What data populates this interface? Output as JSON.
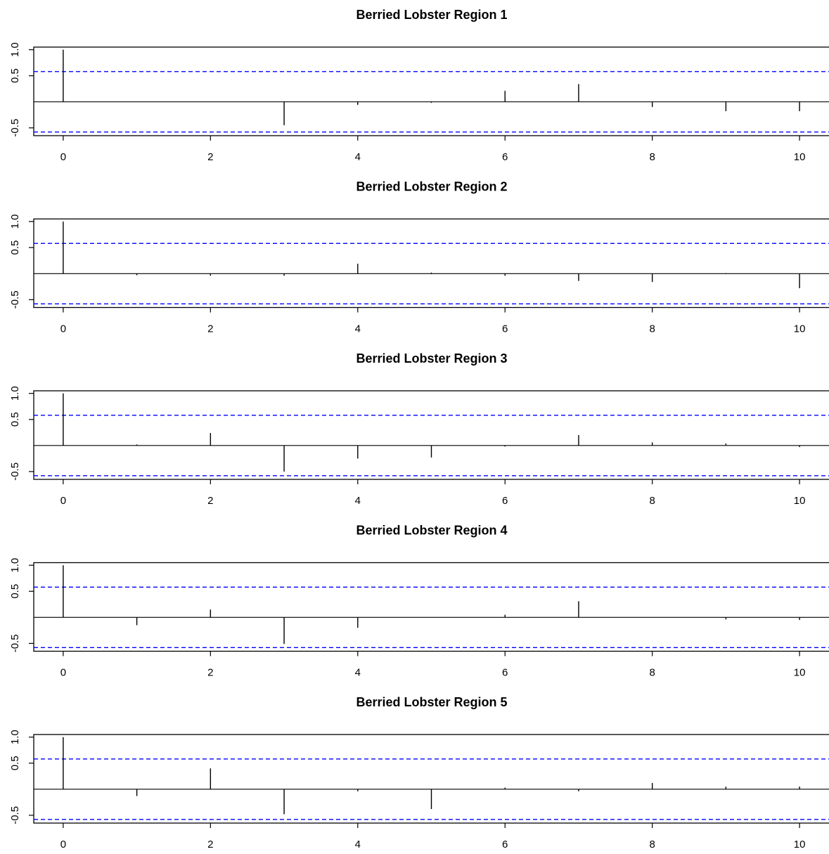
{
  "chart_data": [
    {
      "type": "bar",
      "title": "Berried Lobster Region 1",
      "x": [
        0,
        1,
        2,
        3,
        4,
        5,
        6,
        7,
        8,
        9,
        10
      ],
      "values": [
        1.0,
        0.0,
        0.0,
        -0.45,
        -0.06,
        -0.02,
        0.21,
        0.34,
        -0.1,
        -0.18,
        -0.18
      ],
      "xlim": [
        -0.4,
        10.4
      ],
      "ylim": [
        -0.65,
        1.05
      ],
      "xticks": [
        0,
        2,
        4,
        6,
        8,
        10
      ],
      "yticks": [
        -0.5,
        0.5,
        1.0
      ],
      "yticklabels": [
        "-0.5",
        "0.5",
        "1.0"
      ],
      "confidence_band": 0.58,
      "band_color": "#0000ff"
    },
    {
      "type": "bar",
      "title": "Berried Lobster Region 2",
      "x": [
        0,
        1,
        2,
        3,
        4,
        5,
        6,
        7,
        8,
        9,
        10
      ],
      "values": [
        1.0,
        -0.03,
        -0.04,
        -0.04,
        0.19,
        0.02,
        -0.04,
        -0.14,
        -0.16,
        0.01,
        -0.28
      ],
      "xlim": [
        -0.4,
        10.4
      ],
      "ylim": [
        -0.65,
        1.05
      ],
      "xticks": [
        0,
        2,
        4,
        6,
        8,
        10
      ],
      "yticks": [
        -0.5,
        0.5,
        1.0
      ],
      "yticklabels": [
        "-0.5",
        "0.5",
        "1.0"
      ],
      "confidence_band": 0.58,
      "band_color": "#0000ff"
    },
    {
      "type": "bar",
      "title": "Berried Lobster Region 3",
      "x": [
        0,
        1,
        2,
        3,
        4,
        5,
        6,
        7,
        8,
        9,
        10
      ],
      "values": [
        1.0,
        0.02,
        0.24,
        -0.5,
        -0.25,
        -0.23,
        -0.02,
        0.2,
        0.06,
        0.04,
        -0.03
      ],
      "xlim": [
        -0.4,
        10.4
      ],
      "ylim": [
        -0.65,
        1.05
      ],
      "xticks": [
        0,
        2,
        4,
        6,
        8,
        10
      ],
      "yticks": [
        -0.5,
        0.5,
        1.0
      ],
      "yticklabels": [
        "-0.5",
        "0.5",
        "1.0"
      ],
      "confidence_band": 0.58,
      "band_color": "#0000ff"
    },
    {
      "type": "bar",
      "title": "Berried Lobster Region 4",
      "x": [
        0,
        1,
        2,
        3,
        4,
        5,
        6,
        7,
        8,
        9,
        10
      ],
      "values": [
        1.0,
        -0.15,
        0.15,
        -0.51,
        -0.2,
        0.0,
        0.05,
        0.31,
        0.0,
        -0.04,
        -0.05
      ],
      "xlim": [
        -0.4,
        10.4
      ],
      "ylim": [
        -0.65,
        1.05
      ],
      "xticks": [
        0,
        2,
        4,
        6,
        8,
        10
      ],
      "yticks": [
        -0.5,
        0.5,
        1.0
      ],
      "yticklabels": [
        "-0.5",
        "0.5",
        "1.0"
      ],
      "confidence_band": 0.58,
      "band_color": "#0000ff"
    },
    {
      "type": "bar",
      "title": "Berried Lobster Region 5",
      "x": [
        0,
        1,
        2,
        3,
        4,
        5,
        6,
        7,
        8,
        9,
        10
      ],
      "values": [
        1.0,
        -0.13,
        0.4,
        -0.48,
        -0.04,
        -0.38,
        0.03,
        -0.04,
        0.12,
        0.05,
        0.05
      ],
      "xlim": [
        -0.4,
        10.4
      ],
      "ylim": [
        -0.65,
        1.05
      ],
      "xticks": [
        0,
        2,
        4,
        6,
        8,
        10
      ],
      "yticks": [
        -0.5,
        0.5,
        1.0
      ],
      "yticklabels": [
        "-0.5",
        "0.5",
        "1.0"
      ],
      "confidence_band": 0.58,
      "band_color": "#0000ff"
    }
  ]
}
